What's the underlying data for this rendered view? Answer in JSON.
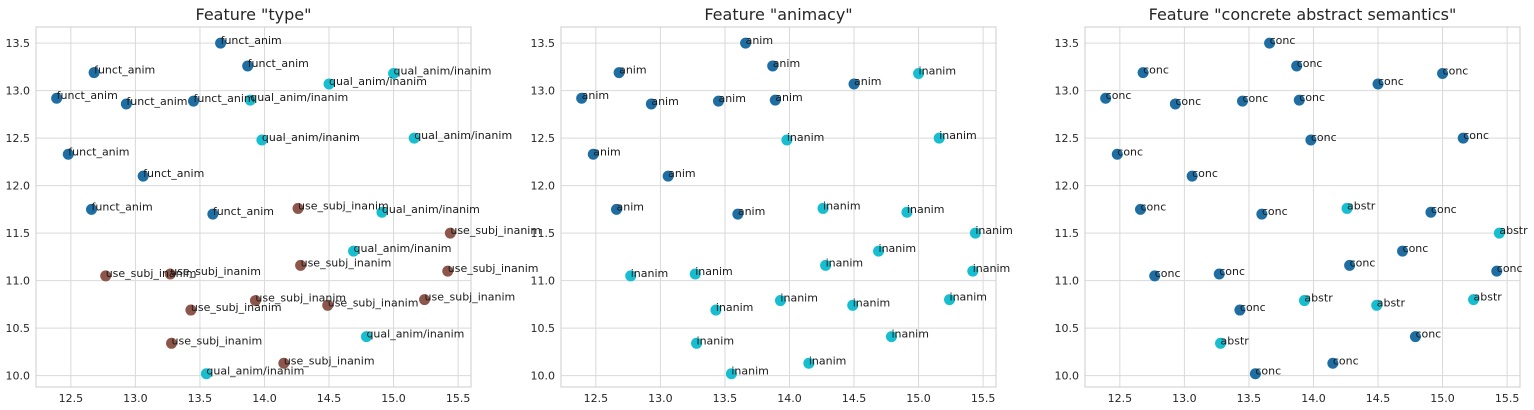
{
  "chart_data": [
    {
      "type": "scatter",
      "title": "Feature \"type\"",
      "xlim": [
        12.23,
        15.6
      ],
      "ylim": [
        9.88,
        13.67
      ],
      "xticks": [
        12.5,
        13.0,
        13.5,
        14.0,
        14.5,
        15.0,
        15.5
      ],
      "yticks": [
        10.0,
        10.5,
        11.0,
        11.5,
        12.0,
        12.5,
        13.0,
        13.5
      ],
      "grid": true,
      "colors": {
        "funct_anim": "#1f6ea3",
        "qual_anim/inanim": "#17becf",
        "use_subj_inanim": "#8c564b"
      },
      "points": [
        {
          "x": 13.66,
          "y": 13.5,
          "label": "funct_anim"
        },
        {
          "x": 12.68,
          "y": 13.19,
          "label": "funct_anim"
        },
        {
          "x": 13.87,
          "y": 13.26,
          "label": "funct_anim"
        },
        {
          "x": 14.5,
          "y": 13.07,
          "label": "qual_anim/inanim"
        },
        {
          "x": 15.0,
          "y": 13.18,
          "label": "qual_anim/inanim"
        },
        {
          "x": 12.39,
          "y": 12.92,
          "label": "funct_anim"
        },
        {
          "x": 12.93,
          "y": 12.86,
          "label": "funct_anim"
        },
        {
          "x": 13.45,
          "y": 12.89,
          "label": "funct_anim"
        },
        {
          "x": 13.89,
          "y": 12.9,
          "label": "qual_anim/inanim"
        },
        {
          "x": 13.98,
          "y": 12.48,
          "label": "qual_anim/inanim"
        },
        {
          "x": 15.16,
          "y": 12.5,
          "label": "qual_anim/inanim"
        },
        {
          "x": 12.48,
          "y": 12.33,
          "label": "funct_anim"
        },
        {
          "x": 13.06,
          "y": 12.1,
          "label": "funct_anim"
        },
        {
          "x": 12.66,
          "y": 11.75,
          "label": "funct_anim"
        },
        {
          "x": 13.6,
          "y": 11.7,
          "label": "funct_anim"
        },
        {
          "x": 14.26,
          "y": 11.76,
          "label": "use_subj_inanim"
        },
        {
          "x": 14.91,
          "y": 11.72,
          "label": "qual_anim/inanim"
        },
        {
          "x": 15.44,
          "y": 11.5,
          "label": "use_subj_inanim"
        },
        {
          "x": 14.69,
          "y": 11.31,
          "label": "qual_anim/inanim"
        },
        {
          "x": 12.77,
          "y": 11.05,
          "label": "use_subj_inanim"
        },
        {
          "x": 13.27,
          "y": 11.07,
          "label": "use_subj_inanim"
        },
        {
          "x": 14.28,
          "y": 11.16,
          "label": "use_subj_inanim"
        },
        {
          "x": 15.42,
          "y": 11.1,
          "label": "use_subj_inanim"
        },
        {
          "x": 13.43,
          "y": 10.69,
          "label": "use_subj_inanim"
        },
        {
          "x": 13.93,
          "y": 10.79,
          "label": "use_subj_inanim"
        },
        {
          "x": 14.49,
          "y": 10.74,
          "label": "use_subj_inanim"
        },
        {
          "x": 15.24,
          "y": 10.8,
          "label": "use_subj_inanim"
        },
        {
          "x": 13.28,
          "y": 10.34,
          "label": "use_subj_inanim"
        },
        {
          "x": 14.79,
          "y": 10.41,
          "label": "qual_anim/inanim"
        },
        {
          "x": 13.55,
          "y": 10.02,
          "label": "qual_anim/inanim"
        },
        {
          "x": 14.15,
          "y": 10.13,
          "label": "use_subj_inanim"
        }
      ]
    },
    {
      "type": "scatter",
      "title": "Feature \"animacy\"",
      "xlim": [
        12.23,
        15.6
      ],
      "ylim": [
        9.88,
        13.67
      ],
      "xticks": [
        12.5,
        13.0,
        13.5,
        14.0,
        14.5,
        15.0,
        15.5
      ],
      "yticks": [
        10.0,
        10.5,
        11.0,
        11.5,
        12.0,
        12.5,
        13.0,
        13.5
      ],
      "grid": true,
      "colors": {
        "anim": "#1f6ea3",
        "inanim": "#17becf"
      },
      "points": [
        {
          "x": 13.66,
          "y": 13.5,
          "label": "anim"
        },
        {
          "x": 12.68,
          "y": 13.19,
          "label": "anim"
        },
        {
          "x": 13.87,
          "y": 13.26,
          "label": "anim"
        },
        {
          "x": 14.5,
          "y": 13.07,
          "label": "anim"
        },
        {
          "x": 15.0,
          "y": 13.18,
          "label": "inanim"
        },
        {
          "x": 12.39,
          "y": 12.92,
          "label": "anim"
        },
        {
          "x": 12.93,
          "y": 12.86,
          "label": "anim"
        },
        {
          "x": 13.45,
          "y": 12.89,
          "label": "anim"
        },
        {
          "x": 13.89,
          "y": 12.9,
          "label": "anim"
        },
        {
          "x": 13.98,
          "y": 12.48,
          "label": "inanim"
        },
        {
          "x": 15.16,
          "y": 12.5,
          "label": "inanim"
        },
        {
          "x": 12.48,
          "y": 12.33,
          "label": "anim"
        },
        {
          "x": 13.06,
          "y": 12.1,
          "label": "anim"
        },
        {
          "x": 12.66,
          "y": 11.75,
          "label": "anim"
        },
        {
          "x": 13.6,
          "y": 11.7,
          "label": "anim"
        },
        {
          "x": 14.26,
          "y": 11.76,
          "label": "inanim"
        },
        {
          "x": 14.91,
          "y": 11.72,
          "label": "inanim"
        },
        {
          "x": 15.44,
          "y": 11.5,
          "label": "inanim"
        },
        {
          "x": 14.69,
          "y": 11.31,
          "label": "inanim"
        },
        {
          "x": 12.77,
          "y": 11.05,
          "label": "inanim"
        },
        {
          "x": 13.27,
          "y": 11.07,
          "label": "inanim"
        },
        {
          "x": 14.28,
          "y": 11.16,
          "label": "inanim"
        },
        {
          "x": 15.42,
          "y": 11.1,
          "label": "inanim"
        },
        {
          "x": 13.43,
          "y": 10.69,
          "label": "inanim"
        },
        {
          "x": 13.93,
          "y": 10.79,
          "label": "inanim"
        },
        {
          "x": 14.49,
          "y": 10.74,
          "label": "inanim"
        },
        {
          "x": 15.24,
          "y": 10.8,
          "label": "inanim"
        },
        {
          "x": 13.28,
          "y": 10.34,
          "label": "inanim"
        },
        {
          "x": 14.79,
          "y": 10.41,
          "label": "inanim"
        },
        {
          "x": 13.55,
          "y": 10.02,
          "label": "inanim"
        },
        {
          "x": 14.15,
          "y": 10.13,
          "label": "inanim"
        }
      ]
    },
    {
      "type": "scatter",
      "title": "Feature \"concrete abstract semantics\"",
      "xlim": [
        12.23,
        15.6
      ],
      "ylim": [
        9.88,
        13.67
      ],
      "xticks": [
        12.5,
        13.0,
        13.5,
        14.0,
        14.5,
        15.0,
        15.5
      ],
      "yticks": [
        10.0,
        10.5,
        11.0,
        11.5,
        12.0,
        12.5,
        13.0,
        13.5
      ],
      "grid": true,
      "colors": {
        "conc": "#1f6ea3",
        "abstr": "#17becf"
      },
      "points": [
        {
          "x": 13.66,
          "y": 13.5,
          "label": "conc"
        },
        {
          "x": 12.68,
          "y": 13.19,
          "label": "conc"
        },
        {
          "x": 13.87,
          "y": 13.26,
          "label": "conc"
        },
        {
          "x": 14.5,
          "y": 13.07,
          "label": "conc"
        },
        {
          "x": 15.0,
          "y": 13.18,
          "label": "conc"
        },
        {
          "x": 12.39,
          "y": 12.92,
          "label": "conc"
        },
        {
          "x": 12.93,
          "y": 12.86,
          "label": "conc"
        },
        {
          "x": 13.45,
          "y": 12.89,
          "label": "conc"
        },
        {
          "x": 13.89,
          "y": 12.9,
          "label": "conc"
        },
        {
          "x": 13.98,
          "y": 12.48,
          "label": "conc"
        },
        {
          "x": 15.16,
          "y": 12.5,
          "label": "conc"
        },
        {
          "x": 12.48,
          "y": 12.33,
          "label": "conc"
        },
        {
          "x": 13.06,
          "y": 12.1,
          "label": "conc"
        },
        {
          "x": 12.66,
          "y": 11.75,
          "label": "conc"
        },
        {
          "x": 13.6,
          "y": 11.7,
          "label": "conc"
        },
        {
          "x": 14.26,
          "y": 11.76,
          "label": "abstr"
        },
        {
          "x": 14.91,
          "y": 11.72,
          "label": "conc"
        },
        {
          "x": 15.44,
          "y": 11.5,
          "label": "abstr"
        },
        {
          "x": 14.69,
          "y": 11.31,
          "label": "conc"
        },
        {
          "x": 12.77,
          "y": 11.05,
          "label": "conc"
        },
        {
          "x": 13.27,
          "y": 11.07,
          "label": "conc"
        },
        {
          "x": 14.28,
          "y": 11.16,
          "label": "conc"
        },
        {
          "x": 15.42,
          "y": 11.1,
          "label": "conc"
        },
        {
          "x": 13.43,
          "y": 10.69,
          "label": "conc"
        },
        {
          "x": 13.93,
          "y": 10.79,
          "label": "abstr"
        },
        {
          "x": 14.49,
          "y": 10.74,
          "label": "abstr"
        },
        {
          "x": 15.24,
          "y": 10.8,
          "label": "abstr"
        },
        {
          "x": 13.28,
          "y": 10.34,
          "label": "abstr"
        },
        {
          "x": 14.79,
          "y": 10.41,
          "label": "conc"
        },
        {
          "x": 13.55,
          "y": 10.02,
          "label": "conc"
        },
        {
          "x": 14.15,
          "y": 10.13,
          "label": "conc"
        }
      ]
    }
  ]
}
